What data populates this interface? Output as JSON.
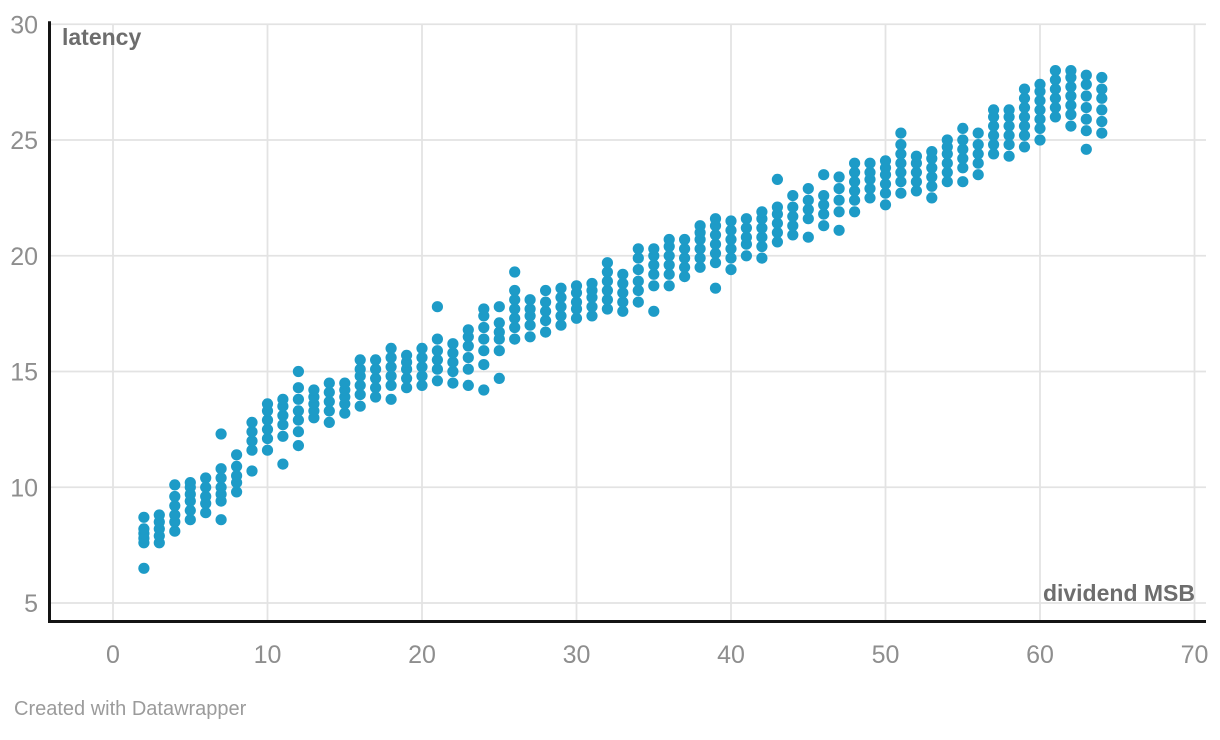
{
  "footer": {
    "credit": "Created with Datawrapper"
  },
  "colors": {
    "dot": "#1d9bc7",
    "gridline": "#e3e3e3",
    "axis_line": "#141414",
    "tick_label": "#8e8e8e",
    "axis_title": "#6d6d6d",
    "credit_text": "#9b9b9b",
    "background": "#ffffff"
  },
  "chart_data": {
    "type": "scatter",
    "title": "",
    "xlabel": "dividend MSB",
    "ylabel": "latency",
    "x_ticks": [
      0,
      10,
      20,
      30,
      40,
      50,
      60,
      70
    ],
    "y_ticks": [
      5,
      10,
      15,
      20,
      25,
      30
    ],
    "xlim": [
      -4,
      71.5
    ],
    "ylim": [
      4.2,
      30.05
    ],
    "grid": true,
    "legend": "none",
    "dot_radius_px": 5.6,
    "series": [
      {
        "name": "latency",
        "clusters": [
          {
            "x": 2,
            "ys": [
              6.5,
              7.6,
              7.8,
              8.0,
              8.2,
              8.7
            ]
          },
          {
            "x": 3,
            "ys": [
              7.6,
              7.9,
              8.2,
              8.5,
              8.8
            ]
          },
          {
            "x": 4,
            "ys": [
              8.1,
              8.5,
              8.8,
              9.2,
              9.6,
              10.1
            ]
          },
          {
            "x": 5,
            "ys": [
              8.6,
              9.0,
              9.4,
              9.7,
              10.0,
              10.2
            ]
          },
          {
            "x": 6,
            "ys": [
              8.9,
              9.3,
              9.6,
              10.0,
              10.4
            ]
          },
          {
            "x": 7,
            "ys": [
              8.6,
              9.4,
              9.7,
              10.0,
              10.4,
              10.8,
              12.3
            ]
          },
          {
            "x": 8,
            "ys": [
              9.8,
              10.2,
              10.5,
              10.9,
              11.4
            ]
          },
          {
            "x": 9,
            "ys": [
              10.7,
              11.6,
              12.0,
              12.4,
              12.8
            ]
          },
          {
            "x": 10,
            "ys": [
              11.6,
              12.1,
              12.5,
              12.9,
              13.3,
              13.6
            ]
          },
          {
            "x": 11,
            "ys": [
              11.0,
              12.2,
              12.7,
              13.1,
              13.5,
              13.8
            ]
          },
          {
            "x": 12,
            "ys": [
              11.8,
              12.4,
              12.9,
              13.3,
              13.8,
              14.3,
              15.0
            ]
          },
          {
            "x": 13,
            "ys": [
              13.0,
              13.3,
              13.6,
              13.9,
              14.2
            ]
          },
          {
            "x": 14,
            "ys": [
              12.8,
              13.3,
              13.7,
              14.1,
              14.5
            ]
          },
          {
            "x": 15,
            "ys": [
              13.2,
              13.6,
              13.9,
              14.2,
              14.5
            ]
          },
          {
            "x": 16,
            "ys": [
              13.5,
              14.0,
              14.4,
              14.8,
              15.1,
              15.5
            ]
          },
          {
            "x": 17,
            "ys": [
              13.9,
              14.3,
              14.7,
              15.1,
              15.5
            ]
          },
          {
            "x": 18,
            "ys": [
              13.8,
              14.4,
              14.8,
              15.2,
              15.6,
              16.0
            ]
          },
          {
            "x": 19,
            "ys": [
              14.3,
              14.7,
              15.1,
              15.4,
              15.7
            ]
          },
          {
            "x": 20,
            "ys": [
              14.4,
              14.8,
              15.2,
              15.6,
              16.0
            ]
          },
          {
            "x": 21,
            "ys": [
              14.6,
              15.1,
              15.5,
              15.9,
              16.4,
              17.8
            ]
          },
          {
            "x": 22,
            "ys": [
              14.5,
              15.0,
              15.4,
              15.8,
              16.2
            ]
          },
          {
            "x": 23,
            "ys": [
              14.4,
              15.1,
              15.6,
              16.1,
              16.5,
              16.8
            ]
          },
          {
            "x": 24,
            "ys": [
              14.2,
              15.3,
              15.9,
              16.4,
              16.9,
              17.4,
              17.7
            ]
          },
          {
            "x": 25,
            "ys": [
              14.7,
              15.9,
              16.4,
              16.7,
              17.1,
              17.8
            ]
          },
          {
            "x": 26,
            "ys": [
              16.4,
              16.9,
              17.3,
              17.7,
              18.1,
              18.5,
              19.3
            ]
          },
          {
            "x": 27,
            "ys": [
              16.5,
              17.0,
              17.4,
              17.7,
              18.1
            ]
          },
          {
            "x": 28,
            "ys": [
              16.7,
              17.2,
              17.6,
              18.0,
              18.5
            ]
          },
          {
            "x": 29,
            "ys": [
              17.0,
              17.4,
              17.8,
              18.2,
              18.6
            ]
          },
          {
            "x": 30,
            "ys": [
              17.3,
              17.7,
              18.0,
              18.4,
              18.7
            ]
          },
          {
            "x": 31,
            "ys": [
              17.4,
              17.8,
              18.2,
              18.5,
              18.8
            ]
          },
          {
            "x": 32,
            "ys": [
              17.7,
              18.1,
              18.5,
              18.9,
              19.3,
              19.7
            ]
          },
          {
            "x": 33,
            "ys": [
              17.6,
              18.0,
              18.4,
              18.8,
              19.2
            ]
          },
          {
            "x": 34,
            "ys": [
              18.0,
              18.5,
              18.9,
              19.4,
              19.9,
              20.3
            ]
          },
          {
            "x": 35,
            "ys": [
              17.6,
              18.7,
              19.2,
              19.6,
              20.0,
              20.3
            ]
          },
          {
            "x": 36,
            "ys": [
              18.7,
              19.2,
              19.6,
              20.0,
              20.4,
              20.7
            ]
          },
          {
            "x": 37,
            "ys": [
              19.1,
              19.5,
              19.9,
              20.3,
              20.7
            ]
          },
          {
            "x": 38,
            "ys": [
              19.5,
              19.9,
              20.3,
              20.7,
              21.0,
              21.3
            ]
          },
          {
            "x": 39,
            "ys": [
              18.6,
              19.7,
              20.1,
              20.5,
              20.9,
              21.3,
              21.6
            ]
          },
          {
            "x": 40,
            "ys": [
              19.4,
              19.9,
              20.3,
              20.7,
              21.1,
              21.5
            ]
          },
          {
            "x": 41,
            "ys": [
              20.0,
              20.5,
              20.8,
              21.2,
              21.6
            ]
          },
          {
            "x": 42,
            "ys": [
              19.9,
              20.4,
              20.8,
              21.2,
              21.6,
              21.9
            ]
          },
          {
            "x": 43,
            "ys": [
              20.6,
              21.0,
              21.4,
              21.8,
              22.1,
              23.3
            ]
          },
          {
            "x": 44,
            "ys": [
              20.9,
              21.3,
              21.7,
              22.1,
              22.6
            ]
          },
          {
            "x": 45,
            "ys": [
              20.8,
              21.6,
              22.0,
              22.4,
              22.9
            ]
          },
          {
            "x": 46,
            "ys": [
              21.3,
              21.8,
              22.2,
              22.6,
              23.5
            ]
          },
          {
            "x": 47,
            "ys": [
              21.1,
              21.9,
              22.4,
              22.9,
              23.4
            ]
          },
          {
            "x": 48,
            "ys": [
              21.9,
              22.4,
              22.8,
              23.2,
              23.6,
              24.0
            ]
          },
          {
            "x": 49,
            "ys": [
              22.5,
              22.9,
              23.3,
              23.6,
              24.0
            ]
          },
          {
            "x": 50,
            "ys": [
              22.2,
              22.7,
              23.1,
              23.5,
              23.8,
              24.1
            ]
          },
          {
            "x": 51,
            "ys": [
              22.7,
              23.2,
              23.6,
              24.0,
              24.4,
              24.8,
              25.3
            ]
          },
          {
            "x": 52,
            "ys": [
              22.8,
              23.2,
              23.6,
              24.0,
              24.3
            ]
          },
          {
            "x": 53,
            "ys": [
              22.5,
              23.0,
              23.4,
              23.8,
              24.2,
              24.5
            ]
          },
          {
            "x": 54,
            "ys": [
              23.2,
              23.6,
              24.0,
              24.4,
              24.7,
              25.0
            ]
          },
          {
            "x": 55,
            "ys": [
              23.2,
              23.8,
              24.2,
              24.6,
              25.0,
              25.5
            ]
          },
          {
            "x": 56,
            "ys": [
              23.5,
              24.0,
              24.4,
              24.8,
              25.3
            ]
          },
          {
            "x": 57,
            "ys": [
              24.4,
              24.8,
              25.2,
              25.6,
              26.0,
              26.3
            ]
          },
          {
            "x": 58,
            "ys": [
              24.3,
              24.8,
              25.2,
              25.6,
              26.0,
              26.3
            ]
          },
          {
            "x": 59,
            "ys": [
              24.7,
              25.2,
              25.6,
              26.0,
              26.4,
              26.8,
              27.2
            ]
          },
          {
            "x": 60,
            "ys": [
              25.0,
              25.5,
              25.9,
              26.3,
              26.7,
              27.1,
              27.4
            ]
          },
          {
            "x": 61,
            "ys": [
              26.0,
              26.4,
              26.8,
              27.2,
              27.6,
              28.0
            ]
          },
          {
            "x": 62,
            "ys": [
              25.6,
              26.1,
              26.5,
              26.9,
              27.3,
              27.7,
              28.0
            ]
          },
          {
            "x": 63,
            "ys": [
              24.6,
              25.4,
              25.9,
              26.4,
              26.9,
              27.4,
              27.8
            ]
          },
          {
            "x": 64,
            "ys": [
              25.3,
              25.8,
              26.3,
              26.8,
              27.2,
              27.7
            ]
          }
        ]
      }
    ]
  }
}
